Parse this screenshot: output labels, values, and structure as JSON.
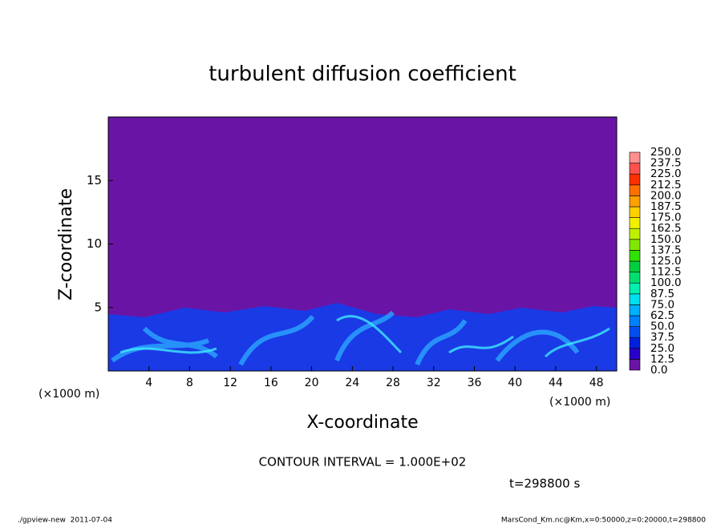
{
  "chart_data": {
    "type": "contour",
    "title": "turbulent diffusion coefficient",
    "xlabel": "X-coordinate",
    "ylabel": "Z-coordinate",
    "x_unit": "(×1000 m)",
    "x_unit_right": "(×1000 m)",
    "xlim": [
      0,
      50
    ],
    "xticks": [
      4,
      8,
      12,
      16,
      20,
      24,
      28,
      32,
      36,
      40,
      44,
      48
    ],
    "ylim": [
      0,
      20
    ],
    "yticks": [
      5,
      10,
      15
    ],
    "levels": [
      {
        "value": 0,
        "label": "0.0"
      },
      12.5,
      {
        "value": 25,
        "label": "25.0"
      },
      37.5,
      {
        "value": 50,
        "label": "50.0"
      },
      62.5,
      {
        "value": 75,
        "label": "75.0"
      },
      87.5,
      {
        "value": 100,
        "label": "100.0"
      },
      112.5,
      {
        "value": 125,
        "label": "125.0"
      },
      137.5,
      {
        "value": 150,
        "label": "150.0"
      },
      162.5,
      {
        "value": 175,
        "label": "175.0"
      },
      187.5,
      {
        "value": 200,
        "label": "200.0"
      },
      212.5,
      {
        "value": 225,
        "label": "225.0"
      },
      237.5,
      {
        "value": 250,
        "label": "250.0"
      }
    ],
    "colors": [
      "#6a14a6",
      "#2a00c8",
      "#0020e0",
      "#0050f0",
      "#0080ff",
      "#00b0ff",
      "#00e0f0",
      "#00f0b0",
      "#00e070",
      "#00d040",
      "#30e000",
      "#80e800",
      "#c0f000",
      "#f0f000",
      "#ffd000",
      "#ffa000",
      "#ff7000",
      "#ff3000",
      "#ff5050",
      "#ff9090"
    ],
    "contour_interval": "CONTOUR INTERVAL = 1.000E+02",
    "time": "t=298800 s",
    "footer_left": "./gpview-new  2011-07-04",
    "footer_right": "MarsCond_Km.nc@Km,x=0:50000,z=0:20000,t=298800"
  }
}
